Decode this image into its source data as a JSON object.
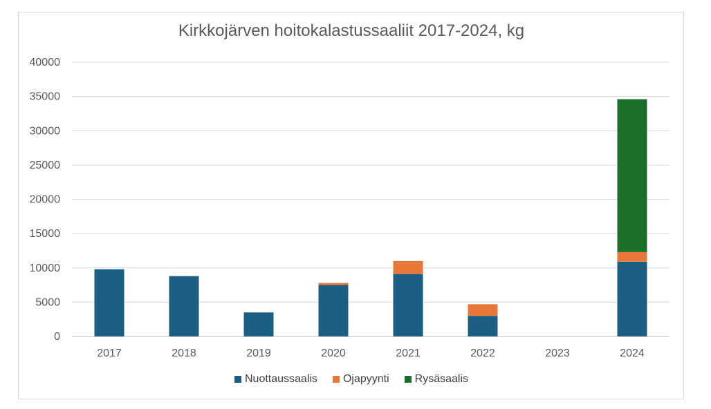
{
  "chart_data": {
    "type": "bar",
    "stacked": true,
    "title": "Kirkkojärven hoitokalastussaaliit 2017-2024, kg",
    "xlabel": "",
    "ylabel": "",
    "categories": [
      "2017",
      "2018",
      "2019",
      "2020",
      "2021",
      "2022",
      "2023",
      "2024"
    ],
    "ylim": [
      0,
      40000
    ],
    "yticks": [
      0,
      5000,
      10000,
      15000,
      20000,
      25000,
      30000,
      35000,
      40000
    ],
    "grid": true,
    "legend_position": "bottom",
    "series": [
      {
        "name": "Nuottaussaalis",
        "color": "#1a5e83",
        "values": [
          9800,
          8800,
          3500,
          7500,
          9100,
          3000,
          0,
          10900
        ]
      },
      {
        "name": "Ojapyynti",
        "color": "#e8773a",
        "values": [
          0,
          0,
          0,
          300,
          1900,
          1700,
          0,
          1400
        ]
      },
      {
        "name": "Rysäsaalis",
        "color": "#1a7028",
        "values": [
          0,
          0,
          0,
          0,
          0,
          0,
          0,
          22300
        ]
      }
    ]
  }
}
